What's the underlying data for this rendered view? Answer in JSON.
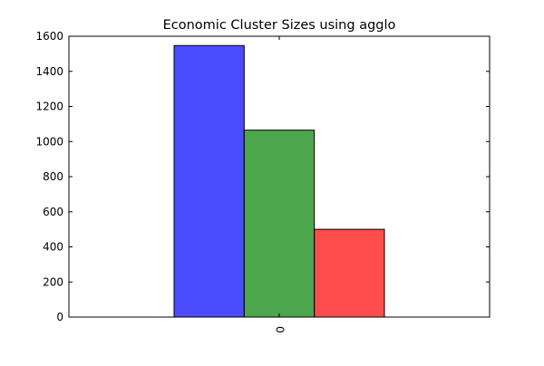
{
  "chart_data": {
    "type": "bar",
    "title": "Economic Cluster Sizes using agglo",
    "xlabel": "",
    "ylabel": "",
    "categories": [
      "0"
    ],
    "series": [
      {
        "values": [
          1547
        ],
        "color": "#0000ff",
        "opacity": 0.7
      },
      {
        "values": [
          1065
        ],
        "color": "#008000",
        "opacity": 0.7
      },
      {
        "values": [
          500
        ],
        "color": "#ff0000",
        "opacity": 0.7
      }
    ],
    "ylim": [
      0,
      1600
    ],
    "yticks": [
      0,
      200,
      400,
      600,
      800,
      1000,
      1200,
      1400,
      1600
    ],
    "grid": false,
    "legend": "none"
  }
}
